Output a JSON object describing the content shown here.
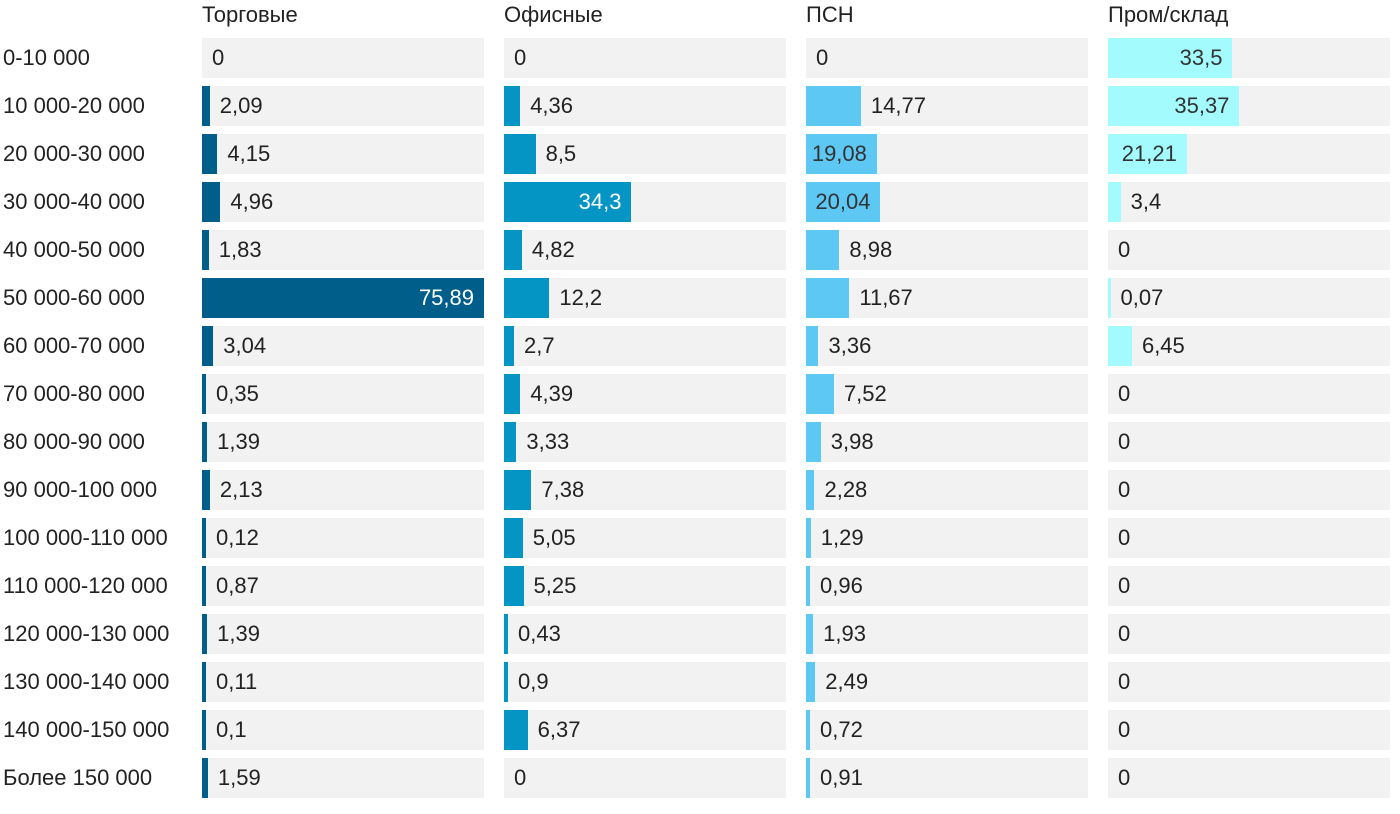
{
  "chart_data": {
    "type": "bar",
    "orientation": "horizontal",
    "layout": "small-multiples",
    "categories": [
      "0-10 000",
      "10 000-20 000",
      "20 000-30 000",
      "30 000-40 000",
      "40 000-50 000",
      "50 000-60 000",
      "60 000-70 000",
      "70 000-80 000",
      "80 000-90 000",
      "90 000-100 000",
      "100 000-110 000",
      "110 000-120 000",
      "120 000-130 000",
      "130 000-140 000",
      "140 000-150 000",
      "Более 150 000"
    ],
    "series": [
      {
        "name": "Торговые",
        "color": "#005f8a",
        "inside_text": "light",
        "values": [
          0,
          2.09,
          4.15,
          4.96,
          1.83,
          75.89,
          3.04,
          0.35,
          1.39,
          2.13,
          0.12,
          0.87,
          1.39,
          0.11,
          0.1,
          1.59
        ],
        "labels": [
          "0",
          "2,09",
          "4,15",
          "4,96",
          "1,83",
          "75,89",
          "3,04",
          "0,35",
          "1,39",
          "2,13",
          "0,12",
          "0,87",
          "1,39",
          "0,11",
          "0,1",
          "1,59"
        ]
      },
      {
        "name": "Офисные",
        "color": "#0595c4",
        "inside_text": "light",
        "values": [
          0,
          4.36,
          8.5,
          34.3,
          4.82,
          12.2,
          2.7,
          4.39,
          3.33,
          7.38,
          5.05,
          5.25,
          0.43,
          0.9,
          6.37,
          0
        ],
        "labels": [
          "0",
          "4,36",
          "8,5",
          "34,3",
          "4,82",
          "12,2",
          "2,7",
          "4,39",
          "3,33",
          "7,38",
          "5,05",
          "5,25",
          "0,43",
          "0,9",
          "6,37",
          "0"
        ]
      },
      {
        "name": "ПСН",
        "color": "#5ec8f5",
        "inside_text": "dark",
        "values": [
          0,
          14.77,
          19.08,
          20.04,
          8.98,
          11.67,
          3.36,
          7.52,
          3.98,
          2.28,
          1.29,
          0.96,
          1.93,
          2.49,
          0.72,
          0.91
        ],
        "labels": [
          "0",
          "14,77",
          "19,08",
          "20,04",
          "8,98",
          "11,67",
          "3,36",
          "7,52",
          "3,98",
          "2,28",
          "1,29",
          "0,96",
          "1,93",
          "2,49",
          "0,72",
          "0,91"
        ]
      },
      {
        "name": "Пром/склад",
        "color": "#a3fbfd",
        "inside_text": "dark",
        "values": [
          33.5,
          35.37,
          21.21,
          3.4,
          0,
          0.07,
          6.45,
          0,
          0,
          0,
          0,
          0,
          0,
          0,
          0,
          0
        ],
        "labels": [
          "33,5",
          "35,37",
          "21,21",
          "3,4",
          "0",
          "0,07",
          "6,45",
          "0",
          "0",
          "0",
          "0",
          "0",
          "0",
          "0",
          "0",
          "0"
        ]
      }
    ],
    "xlim": [
      0,
      75.89
    ],
    "grid": false,
    "legend": "none",
    "title": "",
    "xlabel": "",
    "ylabel": ""
  }
}
